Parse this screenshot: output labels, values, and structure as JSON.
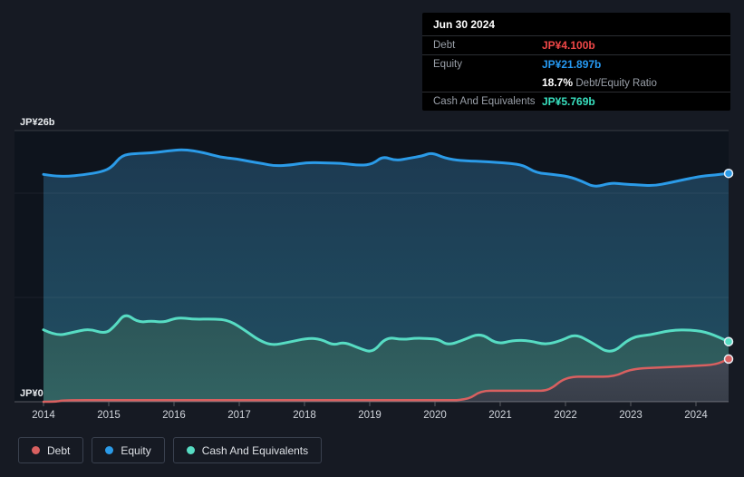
{
  "colors": {
    "debt": "#d96060",
    "equity": "#2b9be8",
    "cash": "#57dcc3",
    "debt_text": "#ef4747",
    "equity_text": "#2699f2",
    "cash_text": "#38e0bf",
    "page_bg": "#161a23",
    "plot_bg": "#0e141d",
    "tooltip_bg": "#000000",
    "grid_major": "rgba(255,255,255,0.16)",
    "grid_minor": "rgba(255,255,255,0.06)",
    "axis_line": "rgba(255,255,255,0.30)"
  },
  "tooltip": {
    "date": "Jun 30 2024",
    "debt_label": "Debt",
    "debt_value": "JP¥4.100b",
    "equity_label": "Equity",
    "equity_value": "JP¥21.897b",
    "ratio_value": "18.7%",
    "ratio_label": "Debt/Equity Ratio",
    "cash_label": "Cash And Equivalents",
    "cash_value": "JP¥5.769b"
  },
  "legend": [
    {
      "id": "debt",
      "label": "Debt"
    },
    {
      "id": "equity",
      "label": "Equity"
    },
    {
      "id": "cash",
      "label": "Cash And Equivalents"
    }
  ],
  "chart_data": {
    "type": "area",
    "title": "Debt, Equity and Cash history to Jun 30 2024",
    "unit": "JP¥ billions",
    "x_range": [
      2014,
      2024.5
    ],
    "y_range": [
      0,
      26
    ],
    "x_axis": {
      "ticks": [
        2014,
        2015,
        2016,
        2017,
        2018,
        2019,
        2020,
        2021,
        2022,
        2023,
        2024
      ]
    },
    "y_axis": {
      "labels": [
        {
          "text": "JP¥26b",
          "value": 26
        },
        {
          "text": "JP¥0",
          "value": 0
        }
      ],
      "gridlines": [
        {
          "value": 26,
          "style": "major"
        },
        {
          "value": 20,
          "style": "minor"
        },
        {
          "value": 10,
          "style": "minor"
        },
        {
          "value": 0,
          "style": "axis"
        }
      ]
    },
    "series": [
      {
        "name": "Equity",
        "key": "equity",
        "end_value": 21.897,
        "points": [
          [
            2014.0,
            21.8
          ],
          [
            2014.15,
            21.65
          ],
          [
            2014.35,
            21.6
          ],
          [
            2014.6,
            21.75
          ],
          [
            2014.9,
            22.05
          ],
          [
            2015.05,
            22.5
          ],
          [
            2015.2,
            23.65
          ],
          [
            2015.4,
            23.8
          ],
          [
            2015.65,
            23.85
          ],
          [
            2015.9,
            24.05
          ],
          [
            2016.15,
            24.2
          ],
          [
            2016.45,
            23.9
          ],
          [
            2016.7,
            23.45
          ],
          [
            2016.95,
            23.3
          ],
          [
            2017.15,
            23.05
          ],
          [
            2017.35,
            22.85
          ],
          [
            2017.55,
            22.6
          ],
          [
            2017.8,
            22.7
          ],
          [
            2018.05,
            22.95
          ],
          [
            2018.3,
            22.9
          ],
          [
            2018.6,
            22.85
          ],
          [
            2018.85,
            22.65
          ],
          [
            2019.05,
            22.8
          ],
          [
            2019.2,
            23.55
          ],
          [
            2019.4,
            23.1
          ],
          [
            2019.6,
            23.35
          ],
          [
            2019.8,
            23.55
          ],
          [
            2019.95,
            23.9
          ],
          [
            2020.15,
            23.35
          ],
          [
            2020.4,
            23.1
          ],
          [
            2020.7,
            23.05
          ],
          [
            2020.95,
            22.95
          ],
          [
            2021.15,
            22.85
          ],
          [
            2021.35,
            22.7
          ],
          [
            2021.55,
            21.95
          ],
          [
            2021.8,
            21.8
          ],
          [
            2022.05,
            21.6
          ],
          [
            2022.25,
            21.15
          ],
          [
            2022.45,
            20.55
          ],
          [
            2022.7,
            21.0
          ],
          [
            2022.9,
            20.85
          ],
          [
            2023.1,
            20.8
          ],
          [
            2023.35,
            20.7
          ],
          [
            2023.6,
            21.0
          ],
          [
            2023.85,
            21.35
          ],
          [
            2024.1,
            21.65
          ],
          [
            2024.3,
            21.75
          ],
          [
            2024.5,
            21.897
          ]
        ]
      },
      {
        "name": "Cash And Equivalents",
        "key": "cash",
        "end_value": 5.769,
        "points": [
          [
            2014.0,
            6.9
          ],
          [
            2014.2,
            6.3
          ],
          [
            2014.45,
            6.65
          ],
          [
            2014.7,
            7.0
          ],
          [
            2014.95,
            6.5
          ],
          [
            2015.1,
            7.3
          ],
          [
            2015.25,
            8.5
          ],
          [
            2015.45,
            7.6
          ],
          [
            2015.65,
            7.75
          ],
          [
            2015.85,
            7.6
          ],
          [
            2016.05,
            8.1
          ],
          [
            2016.3,
            7.9
          ],
          [
            2016.6,
            7.95
          ],
          [
            2016.85,
            7.8
          ],
          [
            2017.1,
            6.8
          ],
          [
            2017.3,
            5.9
          ],
          [
            2017.5,
            5.4
          ],
          [
            2017.75,
            5.7
          ],
          [
            2018.05,
            6.1
          ],
          [
            2018.25,
            6.0
          ],
          [
            2018.45,
            5.4
          ],
          [
            2018.6,
            5.75
          ],
          [
            2018.85,
            5.1
          ],
          [
            2019.05,
            4.7
          ],
          [
            2019.25,
            6.2
          ],
          [
            2019.5,
            5.95
          ],
          [
            2019.7,
            6.1
          ],
          [
            2019.9,
            6.05
          ],
          [
            2020.05,
            6.0
          ],
          [
            2020.2,
            5.4
          ],
          [
            2020.45,
            5.95
          ],
          [
            2020.7,
            6.6
          ],
          [
            2020.95,
            5.5
          ],
          [
            2021.2,
            5.9
          ],
          [
            2021.45,
            5.85
          ],
          [
            2021.7,
            5.45
          ],
          [
            2021.95,
            5.9
          ],
          [
            2022.15,
            6.5
          ],
          [
            2022.4,
            5.7
          ],
          [
            2022.7,
            4.5
          ],
          [
            2023.0,
            6.2
          ],
          [
            2023.3,
            6.4
          ],
          [
            2023.6,
            6.85
          ],
          [
            2023.95,
            6.9
          ],
          [
            2024.2,
            6.6
          ],
          [
            2024.5,
            5.769
          ]
        ]
      },
      {
        "name": "Debt",
        "key": "debt",
        "end_value": 4.1,
        "points": [
          [
            2014.0,
            0.0
          ],
          [
            2014.2,
            0.0
          ],
          [
            2014.3,
            0.15
          ],
          [
            2015.0,
            0.15
          ],
          [
            2016.0,
            0.15
          ],
          [
            2017.0,
            0.15
          ],
          [
            2018.0,
            0.15
          ],
          [
            2019.0,
            0.15
          ],
          [
            2020.0,
            0.15
          ],
          [
            2020.5,
            0.15
          ],
          [
            2020.7,
            1.05
          ],
          [
            2021.0,
            1.05
          ],
          [
            2021.5,
            1.05
          ],
          [
            2021.75,
            1.05
          ],
          [
            2022.0,
            2.4
          ],
          [
            2022.4,
            2.4
          ],
          [
            2022.75,
            2.4
          ],
          [
            2023.0,
            3.15
          ],
          [
            2023.5,
            3.3
          ],
          [
            2024.0,
            3.45
          ],
          [
            2024.3,
            3.55
          ],
          [
            2024.5,
            4.1
          ]
        ]
      }
    ]
  }
}
